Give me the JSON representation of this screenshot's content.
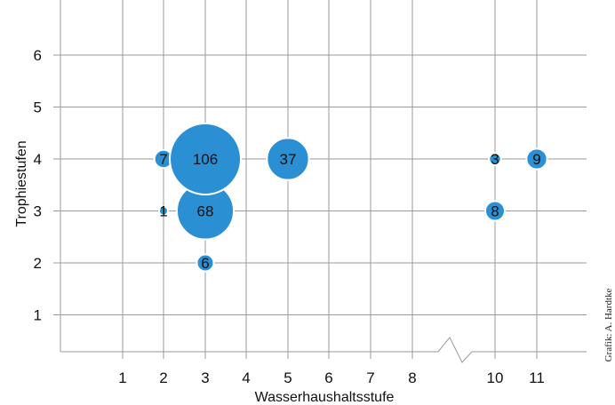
{
  "chart_data": {
    "type": "bubble",
    "xlabel": "Wasserhaushaltsstufe",
    "ylabel": "Trophiestufen",
    "x_ticks": [
      1,
      2,
      3,
      4,
      5,
      6,
      7,
      8,
      10,
      11
    ],
    "y_ticks": [
      1,
      2,
      3,
      4,
      5,
      6
    ],
    "x_axis_break": "between 8 and 10 (9 omitted)",
    "grid": true,
    "points": [
      {
        "x": 2,
        "y": 4,
        "size": 7,
        "label": "7"
      },
      {
        "x": 2,
        "y": 3,
        "size": 1,
        "label": "1"
      },
      {
        "x": 3,
        "y": 4,
        "size": 106,
        "label": "106"
      },
      {
        "x": 3,
        "y": 3,
        "size": 68,
        "label": "68"
      },
      {
        "x": 3,
        "y": 2,
        "size": 6,
        "label": "6"
      },
      {
        "x": 5,
        "y": 4,
        "size": 37,
        "label": "37"
      },
      {
        "x": 10,
        "y": 4,
        "size": 3,
        "label": "3"
      },
      {
        "x": 10,
        "y": 3,
        "size": 8,
        "label": "8"
      },
      {
        "x": 11,
        "y": 4,
        "size": 9,
        "label": "9"
      }
    ],
    "colors": {
      "bubble": "#2b8fd4",
      "bubble_stroke": "#ffffff",
      "grid": "#9a9a9a"
    }
  },
  "credit": "Grafik: A. Hardtke"
}
